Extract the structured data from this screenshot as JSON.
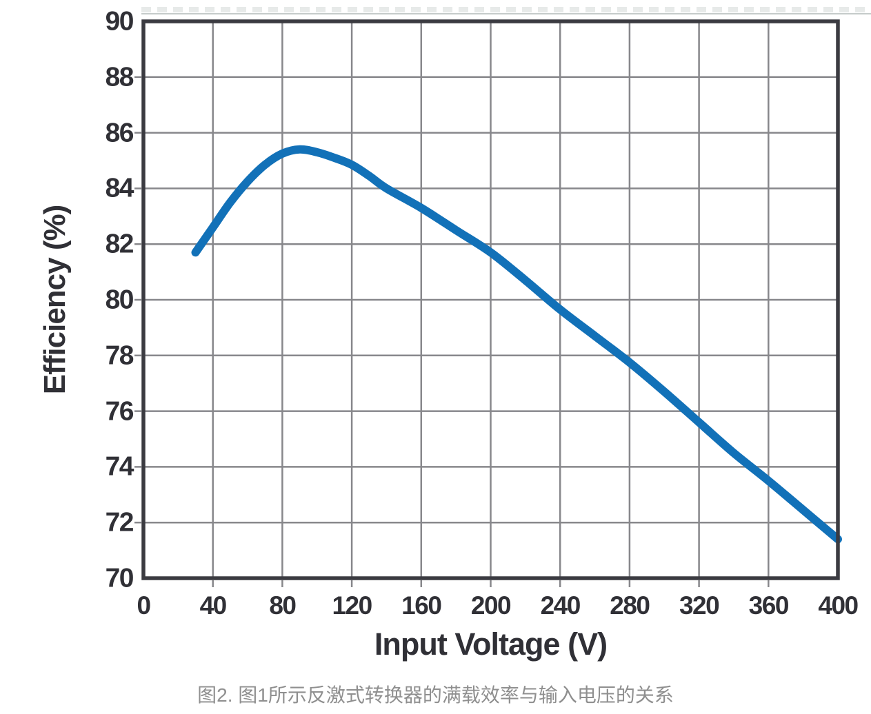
{
  "chart_data": {
    "type": "line",
    "title": "",
    "xlabel": "Input Voltage (V)",
    "ylabel": "Efficiency (%)",
    "xlim": [
      0,
      400
    ],
    "ylim": [
      70,
      90
    ],
    "x_ticks": [
      0,
      40,
      80,
      120,
      160,
      200,
      240,
      280,
      320,
      360,
      400
    ],
    "y_ticks": [
      70,
      72,
      74,
      76,
      78,
      80,
      82,
      84,
      86,
      88,
      90
    ],
    "grid": true,
    "legend": "none",
    "series": [
      {
        "name": "full-load-efficiency",
        "x": [
          30,
          40,
          50,
          60,
          70,
          80,
          90,
          100,
          110,
          120,
          130,
          140,
          160,
          180,
          200,
          220,
          240,
          260,
          280,
          300,
          320,
          340,
          360,
          380,
          400
        ],
        "y": [
          81.7,
          82.6,
          83.5,
          84.25,
          84.85,
          85.25,
          85.4,
          85.3,
          85.1,
          84.85,
          84.45,
          84.0,
          83.3,
          82.5,
          81.7,
          80.7,
          79.65,
          78.7,
          77.75,
          76.7,
          75.6,
          74.5,
          73.5,
          72.45,
          71.4
        ],
        "color": "#1271b8"
      }
    ]
  },
  "caption": "图2. 图1所示反激式转换器的满载效率与输入电压的关系",
  "colors": {
    "curve": "#1271b8",
    "grid_line": "#87878b",
    "frame": "#3b3b41",
    "tick_text": "#303036",
    "caption_text": "#8f8f8f",
    "background": "#ffffff"
  }
}
